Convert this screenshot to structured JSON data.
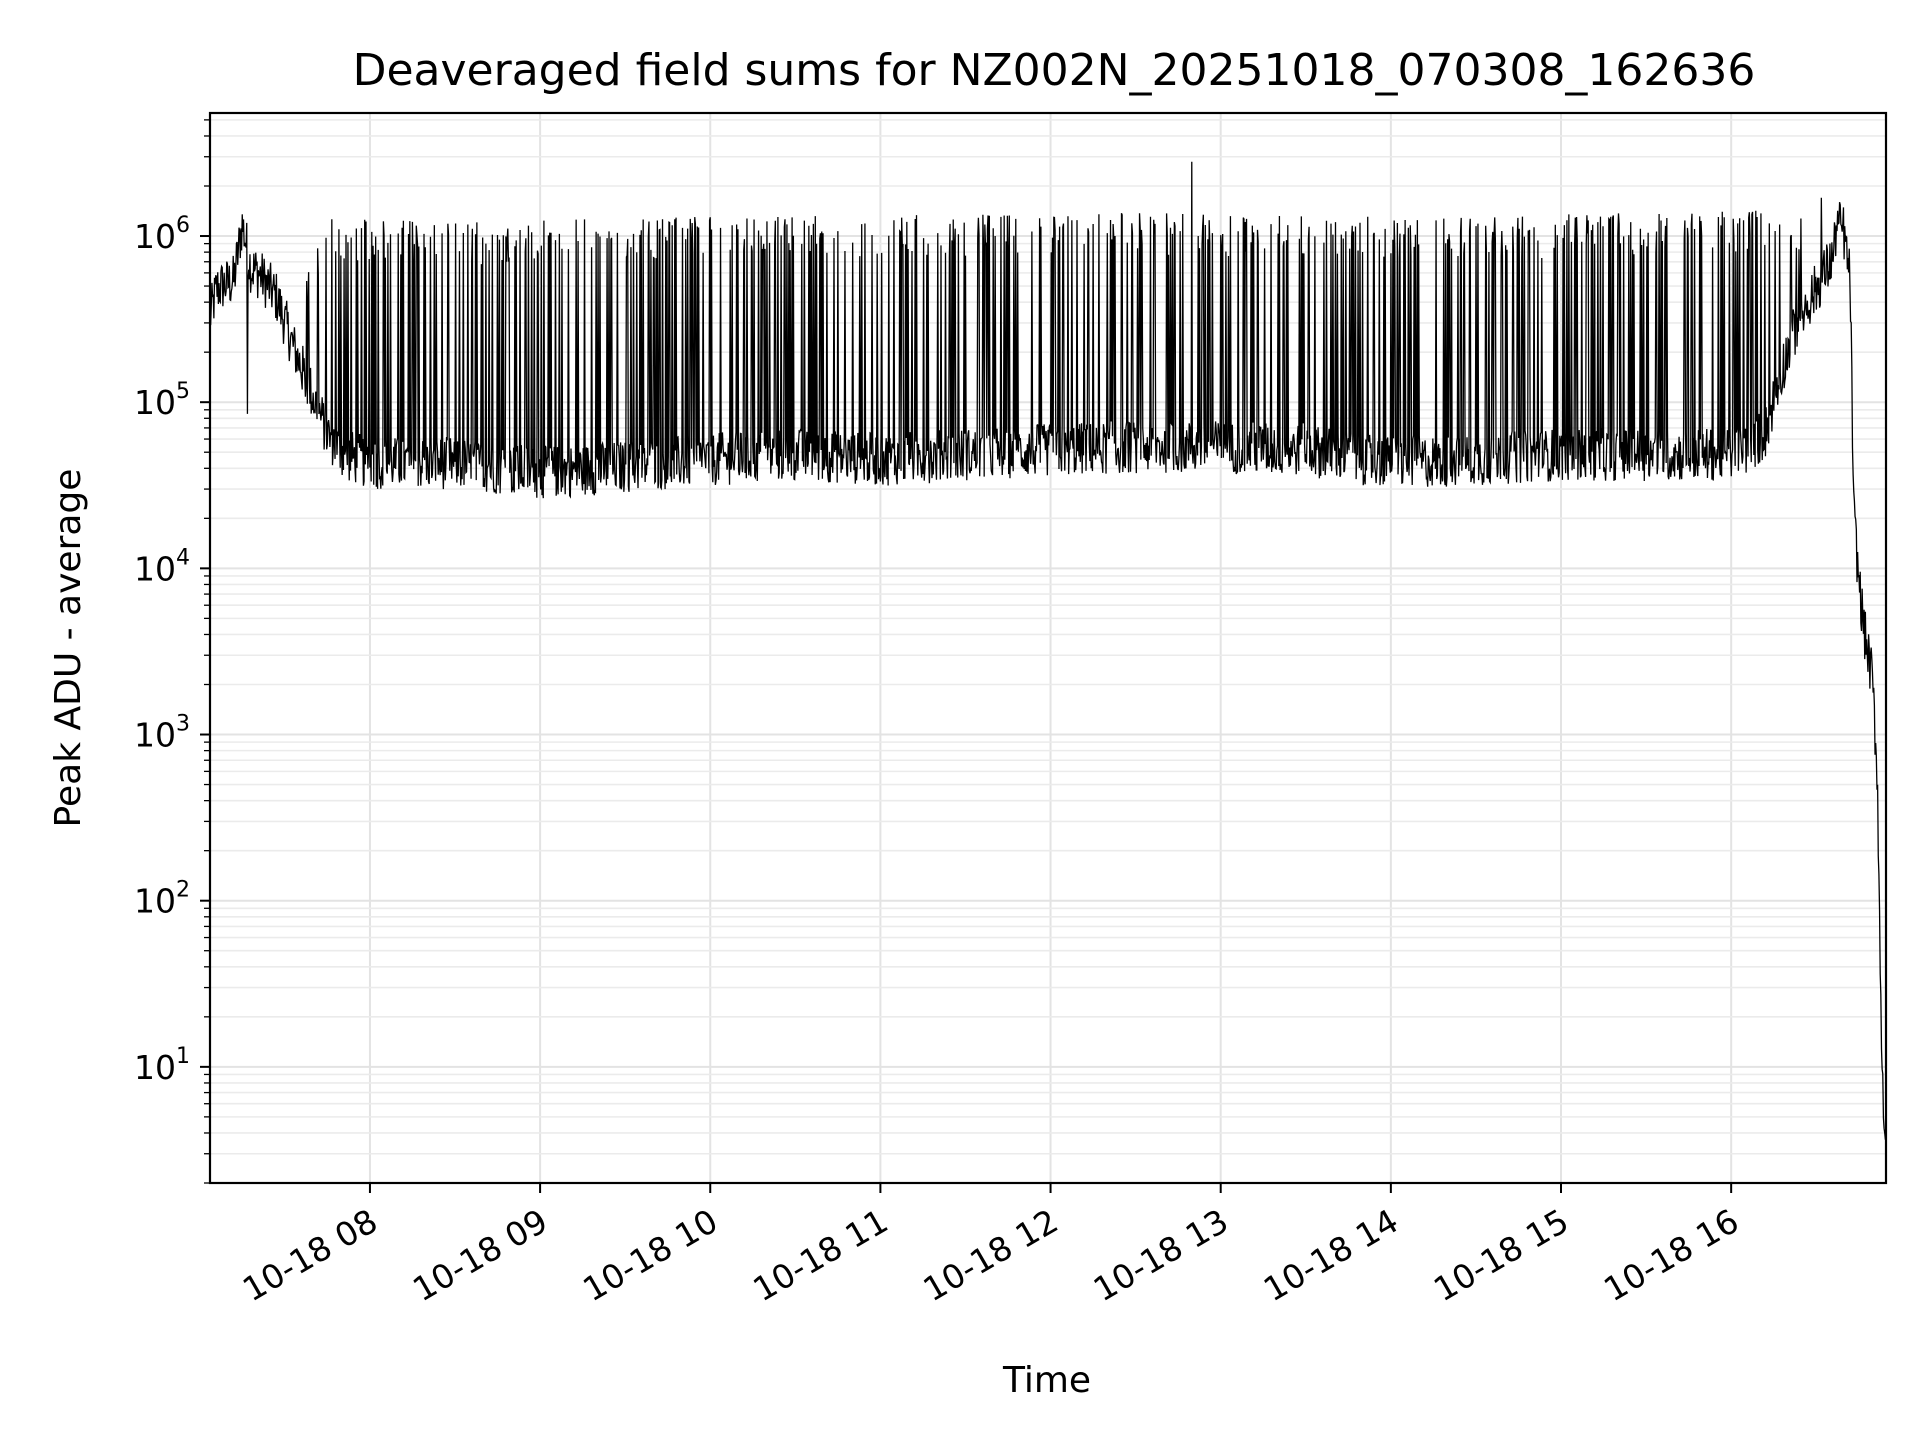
{
  "chart_data": {
    "type": "line",
    "title": "Deaveraged field sums for NZ002N_20251018_070308_162636",
    "xlabel": "Time",
    "ylabel": "Peak ADU - average",
    "yscale": "log",
    "ylim": [
      2,
      5500000
    ],
    "xlim_hours": [
      7.06,
      16.91
    ],
    "grid": "on",
    "line_color": "#000000",
    "x_ticks": [
      {
        "hour": 8,
        "label": "10-18 08"
      },
      {
        "hour": 9,
        "label": "10-18 09"
      },
      {
        "hour": 10,
        "label": "10-18 10"
      },
      {
        "hour": 11,
        "label": "10-18 11"
      },
      {
        "hour": 12,
        "label": "10-18 12"
      },
      {
        "hour": 13,
        "label": "10-18 13"
      },
      {
        "hour": 14,
        "label": "10-18 14"
      },
      {
        "hour": 15,
        "label": "10-18 15"
      },
      {
        "hour": 16,
        "label": "10-18 16"
      }
    ],
    "y_ticks": [
      {
        "exp": 1,
        "base": "10",
        "sup": "1"
      },
      {
        "exp": 2,
        "base": "10",
        "sup": "2"
      },
      {
        "exp": 3,
        "base": "10",
        "sup": "3"
      },
      {
        "exp": 4,
        "base": "10",
        "sup": "4"
      },
      {
        "exp": 5,
        "base": "10",
        "sup": "5"
      },
      {
        "exp": 6,
        "base": "10",
        "sup": "6"
      }
    ],
    "series": [
      {
        "name": "Peak ADU - average",
        "description": "approximate envelope; dense spikes between floor and ~1.3e6",
        "x_hours": [
          7.06,
          7.1,
          7.2,
          7.25,
          7.3,
          7.35,
          7.45,
          7.55,
          7.65,
          7.75,
          7.85,
          8.0,
          8.5,
          9.0,
          9.5,
          10.0,
          10.5,
          11.0,
          11.5,
          12.0,
          12.5,
          13.0,
          13.5,
          14.0,
          14.5,
          15.0,
          15.5,
          16.0,
          16.1,
          16.2,
          16.3,
          16.4,
          16.5,
          16.6,
          16.62,
          16.66,
          16.7,
          16.72,
          16.75,
          16.78,
          16.8,
          16.83,
          16.86,
          16.88,
          16.9,
          16.91
        ],
        "floor": [
          300000,
          450000,
          500000,
          1100000,
          600000,
          550000,
          400000,
          200000,
          110000,
          60000,
          45000,
          40000,
          40000,
          35000,
          38000,
          42000,
          45000,
          42000,
          45000,
          48000,
          50000,
          50000,
          48000,
          40000,
          42000,
          45000,
          45000,
          45000,
          50000,
          60000,
          150000,
          300000,
          450000,
          700000,
          1100000,
          1000000,
          500000,
          20000,
          8000,
          4000,
          3000,
          2000,
          500,
          20,
          4,
          4
        ],
        "spike_max": [
          500000,
          600000,
          1400000,
          1500000,
          900000,
          800000,
          600000,
          500000,
          700000,
          1400000,
          1100000,
          1300000,
          1200000,
          1300000,
          1300000,
          1300000,
          1350000,
          1350000,
          1350000,
          1350000,
          1400000,
          1350000,
          1350000,
          1300000,
          1300000,
          1350000,
          1400000,
          1400000,
          1450000,
          1450000,
          1400000,
          1300000,
          1200000,
          1100000,
          1200000,
          1100000,
          600000,
          20000,
          10000,
          6000,
          3500,
          2500,
          1200,
          40,
          4,
          4
        ],
        "notable_points": [
          {
            "hour": 12.83,
            "value": 2800000
          },
          {
            "hour": 16.53,
            "value": 1700000
          },
          {
            "hour": 7.28,
            "value": 85000
          }
        ]
      }
    ]
  }
}
